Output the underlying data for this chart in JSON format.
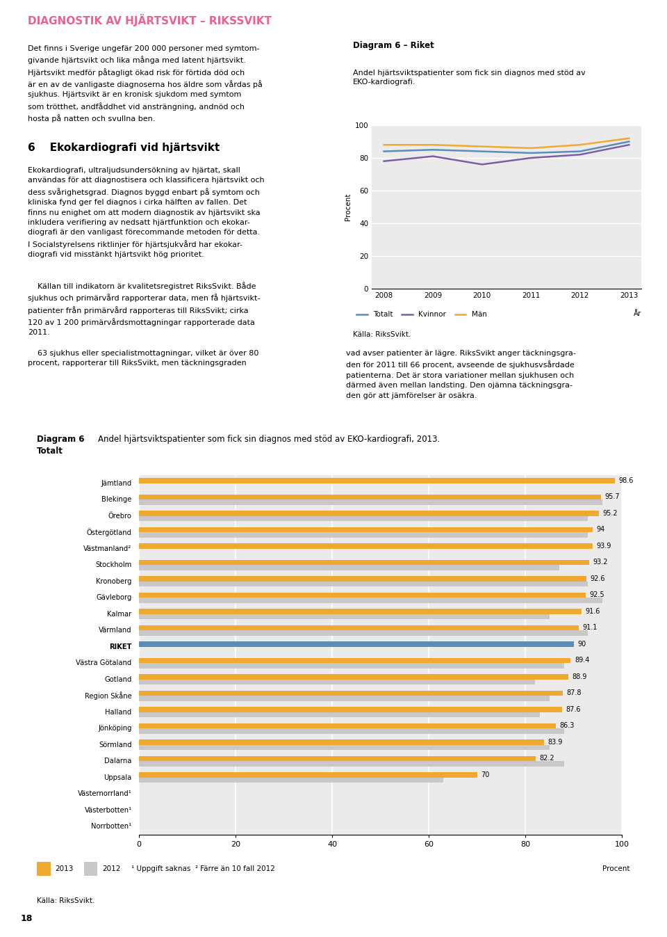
{
  "page_bg": "#ffffff",
  "header_title": "DIAGNOSTIK AV HJÄRTSVIKT – RIKSSVIKT",
  "header_color": "#e8648a",
  "para1": "Det finns i Sverige ungefär 200 000 personer med symtom-\ngivande hjärtsvikt och lika många med latent hjärtsvikt.\nHjärtsvikt medför påtagligt ökad risk för förtida död och\när en av de vanligaste diagnoserna hos äldre som vårdas på\nsjukhus. Hjärtsvikt är en kronisk sjukdom med symtom\nsom trötthet, andfåddhet vid ansträngning, andnöd och\nhosta på natten och svullna ben.",
  "section_header": "6    Ekokardiografi vid hjärtsvikt",
  "para2": "Ekokardiografi, ultraljudsundersökning av hjärtat, skall\nanvändas för att diagnostisera och klassificera hjärtsvikt och\ndess svårighetsgrad. Diagnos byggd enbart på symtom och\nkliniska fynd ger fel diagnos i cirka hälften av fallen. Det\nfinns nu enighet om att modern diagnostik av hjärtsvikt ska\ninkludera verifiering av nedsatt hjärtfunktion och ekokar-\ndiografi är den vanligast förecommande metoden för detta.\nI Socialstyrelsens riktlinjer för hjärtsjukvård har ekokar-\ndiografi vid misstänkt hjärtsvikt hög prioritet.",
  "para3": "    Källan till indikatorn är kvalitetsregistret RiksSvikt. Både\nsjukhus och primärvård rapporterar data, men få hjärtsvikt-\npatienter från primärvård rapporteras till RiksSvikt; cirka\n120 av 1 200 primärvårdsmottagningar rapporterade data\n2011.",
  "para4": "    63 sjukhus eller specialistmottagningar, vilket är över 80\nprocent, rapporterar till RiksSvikt, men täckningsgraden",
  "right_text": "vad avser patienter är lägre. RiksSvikt anger täckningsgra-\nden för 2011 till 66 procent, avseende de sjukhusvsårdade\npatienterna. Det är stora variationer mellan sjukhusen och\ndärmed även mellan landsting. Den ojämna täckningsgra-\nden gör att jämförelser är osäkra.",
  "sc_title": "Diagram 6 – Riket",
  "sc_subtitle": "Andel hjärtsviktspatienter som fick sin diagnos med stöd av\nEKO-kardiografi.",
  "sc_ylabel": "Procent",
  "sc_ar": "År",
  "sc_years": [
    2008,
    2009,
    2010,
    2011,
    2012,
    2013
  ],
  "sc_totalt": [
    84,
    85,
    84,
    83,
    84,
    90
  ],
  "sc_kvinnor": [
    78,
    81,
    76,
    80,
    82,
    88
  ],
  "sc_man": [
    88,
    88,
    87,
    86,
    88,
    92
  ],
  "sc_ylim": [
    0,
    100
  ],
  "sc_yticks": [
    0,
    20,
    40,
    60,
    80,
    100
  ],
  "sc_color_totalt": "#5b8db8",
  "sc_color_kvinnor": "#7b5ea7",
  "sc_color_man": "#f0a830",
  "sc_source": "Källa: RiksSvikt.",
  "sc_bg": "#ebebeb",
  "bc_title_label": "Diagram 6",
  "bc_title": "Andel hjärtsviktspatienter som fick sin diagnos med stöd av EKO-kardiografi, 2013.",
  "bc_subtitle": "Totalt",
  "bc_bg": "#ebebeb",
  "bc_color_2013": "#f0a830",
  "bc_color_2012": "#c8c8c8",
  "bc_color_riket": "#5b8db8",
  "bc_categories": [
    "Jämtland",
    "Blekinge",
    "Örebro",
    "Östergötland",
    "Västmanland²",
    "Stockholm",
    "Kronoberg",
    "Gävleborg",
    "Kalmar",
    "Värmland",
    "RIKET",
    "Västra Götaland",
    "Gotland",
    "Region Skåne",
    "Halland",
    "Jönköping",
    "Sörmland",
    "Dalarna",
    "Uppsala",
    "Västernorrland¹",
    "Västerbotten¹",
    "Norrbotten¹"
  ],
  "bc_vals_2013": [
    98.6,
    95.7,
    95.2,
    94.0,
    93.9,
    93.2,
    92.6,
    92.5,
    91.6,
    91.1,
    90.0,
    89.4,
    88.9,
    87.8,
    87.6,
    86.3,
    83.9,
    82.2,
    70.0,
    null,
    null,
    null
  ],
  "bc_vals_2012": [
    null,
    96.0,
    93.0,
    93.0,
    null,
    87.0,
    93.0,
    96.0,
    85.0,
    93.0,
    null,
    88.0,
    82.0,
    85.0,
    83.0,
    88.0,
    85.0,
    88.0,
    63.0,
    null,
    null,
    null
  ],
  "bc_xlabel": "Procent",
  "bc_legend_2013": "2013",
  "bc_legend_2012": "2012",
  "bc_footnote": "¹ Uppgift saknas  ² Färre än 10 fall 2012",
  "bc_source": "Källa: RiksSvikt.",
  "page_number": "18"
}
